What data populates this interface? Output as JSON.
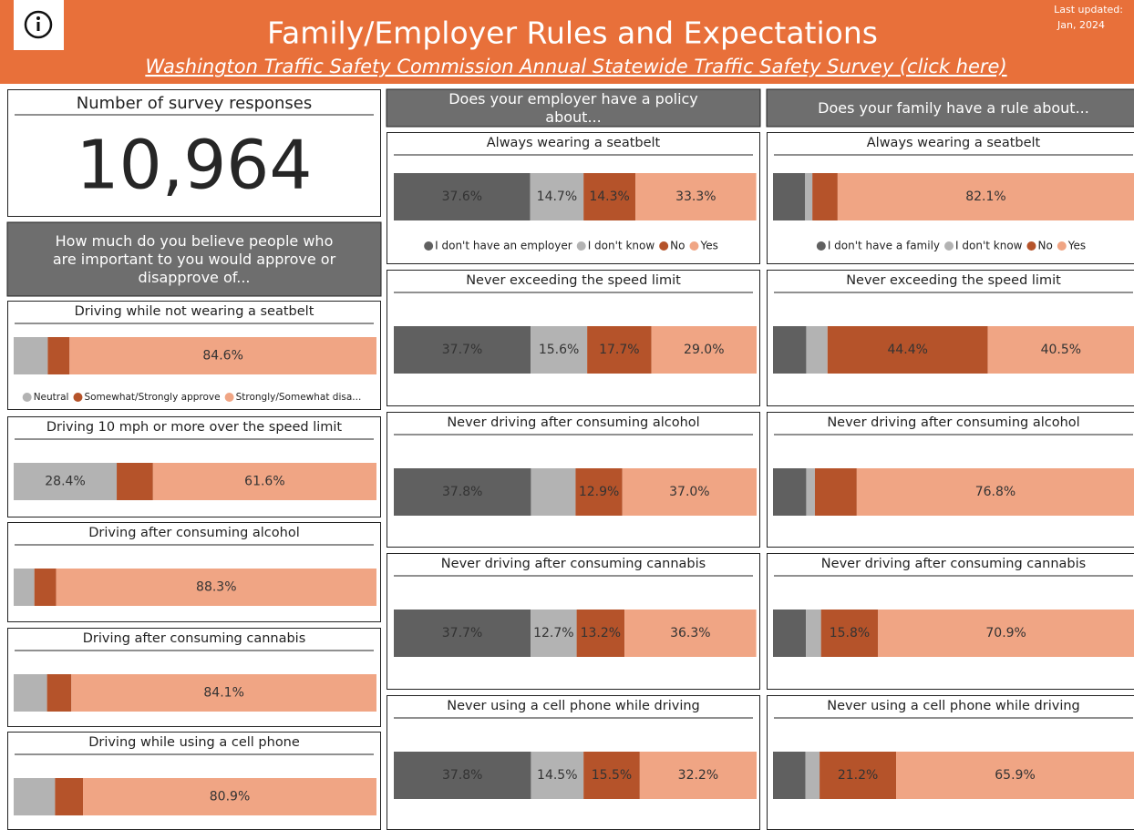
{
  "header": {
    "title": "Family/Employer Rules and Expectations",
    "subtitle": "Washington Traffic Safety Commission Annual Statewide Traffic Safety Survey (click here)",
    "updated_label": "Last updated:",
    "updated_date": "Jan, 2024"
  },
  "kpi": {
    "label": "Number of survey responses",
    "value": "10,964"
  },
  "chart_data": [
    {
      "type": "bar",
      "stacked": true,
      "orientation": "horizontal",
      "title": "How much do you believe people who are important to you would approve or disapprove of...",
      "categories": [
        "Driving while not wearing a seatbelt",
        "Driving 10 mph or more over the speed limit",
        "Driving after consuming alcohol",
        "Driving after consuming cannabis",
        "Driving while using a cell phone"
      ],
      "series": [
        {
          "name": "Neutral",
          "color": "#b3b3b3",
          "values": [
            9.4,
            28.4,
            5.7,
            9.2,
            11.4
          ],
          "value_labels": [
            null,
            "28.4%",
            null,
            null,
            null
          ]
        },
        {
          "name": "Somewhat/Strongly approve",
          "color": "#b5532a",
          "values": [
            6.0,
            10.0,
            6.0,
            6.7,
            7.7
          ],
          "value_labels": [
            null,
            null,
            null,
            null,
            null
          ]
        },
        {
          "name": "Strongly/Somewhat disa...",
          "color": "#f0a584",
          "values": [
            84.6,
            61.6,
            88.3,
            84.1,
            80.9
          ],
          "value_labels": [
            "84.6%",
            "61.6%",
            "88.3%",
            "84.1%",
            "80.9%"
          ]
        }
      ]
    },
    {
      "type": "bar",
      "stacked": true,
      "orientation": "horizontal",
      "title": "Does your employer have a policy about...",
      "categories": [
        "Always wearing a seatbelt",
        "Never exceeding the speed limit",
        "Never driving after consuming alcohol",
        "Never driving after consuming cannabis",
        "Never using a cell phone while driving"
      ],
      "series": [
        {
          "name": "I don't have an employer",
          "color": "#606060",
          "values": [
            37.6,
            37.7,
            37.8,
            37.7,
            37.8
          ],
          "value_labels": [
            "37.6%",
            "37.7%",
            "37.8%",
            "37.7%",
            "37.8%"
          ]
        },
        {
          "name": "I don't know",
          "color": "#b3b3b3",
          "values": [
            14.7,
            15.6,
            12.3,
            12.7,
            14.5
          ],
          "value_labels": [
            "14.7%",
            "15.6%",
            null,
            "12.7%",
            "14.5%"
          ]
        },
        {
          "name": "No",
          "color": "#b5532a",
          "values": [
            14.3,
            17.7,
            12.9,
            13.2,
            15.5
          ],
          "value_labels": [
            "14.3%",
            "17.7%",
            "12.9%",
            "13.2%",
            "15.5%"
          ]
        },
        {
          "name": "Yes",
          "color": "#f0a584",
          "values": [
            33.3,
            29.0,
            37.0,
            36.3,
            32.2
          ],
          "value_labels": [
            "33.3%",
            "29.0%",
            "37.0%",
            "36.3%",
            "32.2%"
          ]
        }
      ]
    },
    {
      "type": "bar",
      "stacked": true,
      "orientation": "horizontal",
      "title": "Does your family have a rule about...",
      "categories": [
        "Always wearing a seatbelt",
        "Never exceeding the speed limit",
        "Never driving after consuming alcohol",
        "Never driving after consuming cannabis",
        "Never using a cell phone while driving"
      ],
      "series": [
        {
          "name": "I don't have a family",
          "color": "#606060",
          "values": [
            8.9,
            9.2,
            9.2,
            9.1,
            9.0
          ],
          "value_labels": [
            null,
            null,
            null,
            null,
            null
          ]
        },
        {
          "name": "I don't know",
          "color": "#b3b3b3",
          "values": [
            2.0,
            5.9,
            2.4,
            4.2,
            3.9
          ],
          "value_labels": [
            null,
            null,
            null,
            null,
            null
          ]
        },
        {
          "name": "No",
          "color": "#b5532a",
          "values": [
            7.0,
            44.4,
            11.6,
            15.8,
            21.2
          ],
          "value_labels": [
            null,
            "44.4%",
            null,
            "15.8%",
            "21.2%"
          ]
        },
        {
          "name": "Yes",
          "color": "#f0a584",
          "values": [
            82.1,
            40.5,
            76.8,
            70.9,
            65.9
          ],
          "value_labels": [
            "82.1%",
            "40.5%",
            "76.8%",
            "70.9%",
            "65.9%"
          ]
        }
      ]
    }
  ]
}
